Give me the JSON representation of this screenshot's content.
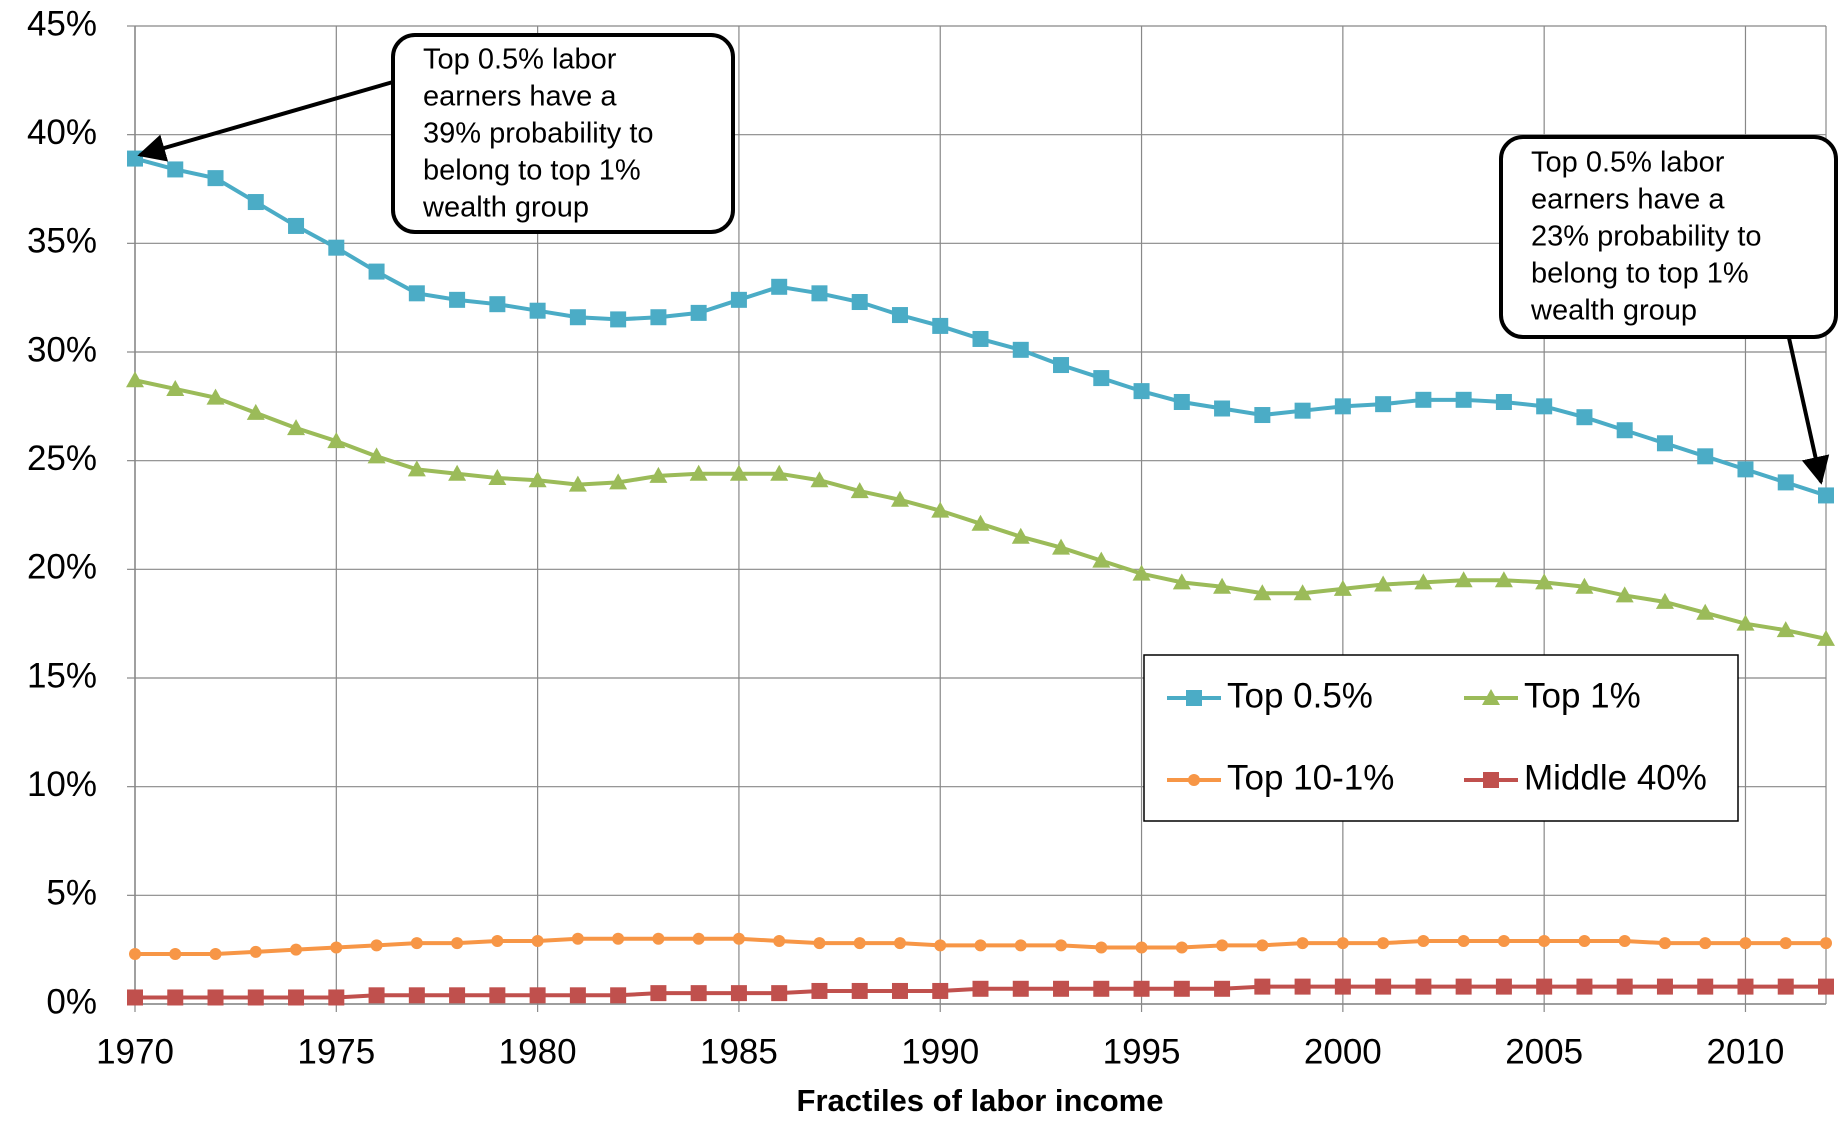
{
  "chart_data": {
    "type": "line",
    "x_label": "Fractiles of labor income",
    "x": [
      1970,
      1971,
      1972,
      1973,
      1974,
      1975,
      1976,
      1977,
      1978,
      1979,
      1980,
      1981,
      1982,
      1983,
      1984,
      1985,
      1986,
      1987,
      1988,
      1989,
      1990,
      1991,
      1992,
      1993,
      1994,
      1995,
      1996,
      1997,
      1998,
      1999,
      2000,
      2001,
      2002,
      2003,
      2004,
      2005,
      2006,
      2007,
      2008,
      2009,
      2010,
      2011,
      2012
    ],
    "series": [
      {
        "name": "Top 0.5%",
        "color": "#4bacc6",
        "marker": "square",
        "values": [
          38.9,
          38.4,
          38.0,
          36.9,
          35.8,
          34.8,
          33.7,
          32.7,
          32.4,
          32.2,
          31.9,
          31.6,
          31.5,
          31.6,
          31.8,
          32.4,
          33.0,
          32.7,
          32.3,
          31.7,
          31.2,
          30.6,
          30.1,
          29.4,
          28.8,
          28.2,
          27.7,
          27.4,
          27.1,
          27.3,
          27.5,
          27.6,
          27.8,
          27.8,
          27.7,
          27.5,
          27.0,
          26.4,
          25.8,
          25.2,
          24.6,
          24.0,
          23.4
        ]
      },
      {
        "name": "Top 1%",
        "color": "#9bbb59",
        "marker": "triangle",
        "values": [
          28.7,
          28.3,
          27.9,
          27.2,
          26.5,
          25.9,
          25.2,
          24.6,
          24.4,
          24.2,
          24.1,
          23.9,
          24.0,
          24.3,
          24.4,
          24.4,
          24.4,
          24.1,
          23.6,
          23.2,
          22.7,
          22.1,
          21.5,
          21.0,
          20.4,
          19.8,
          19.4,
          19.2,
          18.9,
          18.9,
          19.1,
          19.3,
          19.4,
          19.5,
          19.5,
          19.4,
          19.2,
          18.8,
          18.5,
          18.0,
          17.5,
          17.2,
          16.8
        ]
      },
      {
        "name": "Top 10-1%",
        "color": "#f79646",
        "marker": "circle",
        "values": [
          2.3,
          2.3,
          2.3,
          2.4,
          2.5,
          2.6,
          2.7,
          2.8,
          2.8,
          2.9,
          2.9,
          3.0,
          3.0,
          3.0,
          3.0,
          3.0,
          2.9,
          2.8,
          2.8,
          2.8,
          2.7,
          2.7,
          2.7,
          2.7,
          2.6,
          2.6,
          2.6,
          2.7,
          2.7,
          2.8,
          2.8,
          2.8,
          2.9,
          2.9,
          2.9,
          2.9,
          2.9,
          2.9,
          2.8,
          2.8,
          2.8,
          2.8,
          2.8
        ]
      },
      {
        "name": "Middle 40%",
        "color": "#c0504d",
        "marker": "square",
        "values": [
          0.3,
          0.3,
          0.3,
          0.3,
          0.3,
          0.3,
          0.4,
          0.4,
          0.4,
          0.4,
          0.4,
          0.4,
          0.4,
          0.5,
          0.5,
          0.5,
          0.5,
          0.6,
          0.6,
          0.6,
          0.6,
          0.7,
          0.7,
          0.7,
          0.7,
          0.7,
          0.7,
          0.7,
          0.8,
          0.8,
          0.8,
          0.8,
          0.8,
          0.8,
          0.8,
          0.8,
          0.8,
          0.8,
          0.8,
          0.8,
          0.8,
          0.8,
          0.8
        ]
      }
    ],
    "xlim": [
      1970,
      2012
    ],
    "xticks": [
      1970,
      1975,
      1980,
      1985,
      1990,
      1995,
      2000,
      2005,
      2010
    ],
    "ylim": [
      0,
      45
    ],
    "yticks": [
      {
        "value": 0,
        "label": "0%"
      },
      {
        "value": 5,
        "label": "5%"
      },
      {
        "value": 10,
        "label": "10%"
      },
      {
        "value": 15,
        "label": "15%"
      },
      {
        "value": 20,
        "label": "20%"
      },
      {
        "value": 25,
        "label": "25%"
      },
      {
        "value": 30,
        "label": "30%"
      },
      {
        "value": 35,
        "label": "35%"
      },
      {
        "value": 40,
        "label": "40%"
      },
      {
        "value": 45,
        "label": "45%"
      }
    ],
    "grid": true,
    "legend": "lower-right",
    "annotations": [
      {
        "lines": [
          "Top 0.5% labor",
          "earners have a",
          "39% probability to",
          "belong to top 1%",
          "wealth group"
        ]
      },
      {
        "lines": [
          "Top 0.5% labor",
          "earners have a",
          "23% probability to",
          "belong to top 1%",
          "wealth group"
        ]
      }
    ]
  }
}
